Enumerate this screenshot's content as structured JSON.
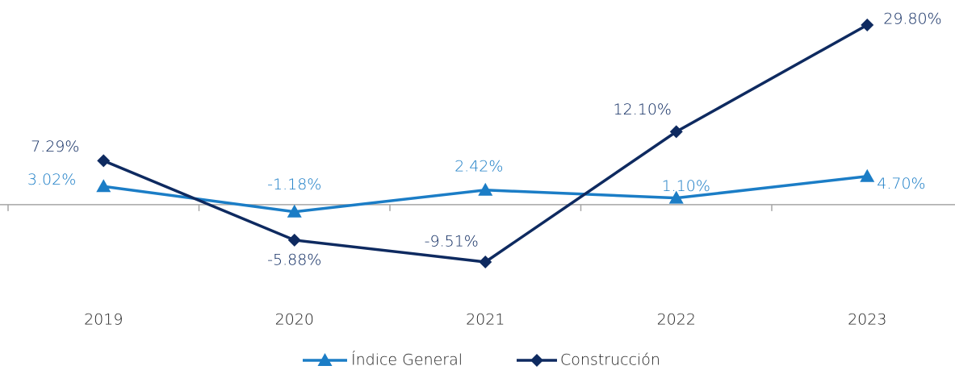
{
  "chart_data": {
    "type": "line",
    "categories": [
      "2019",
      "2020",
      "2021",
      "2022",
      "2023"
    ],
    "series": [
      {
        "name": "Índice General",
        "color": "#1b7dc6",
        "marker": "triangle",
        "values": [
          3.02,
          -1.18,
          2.42,
          1.1,
          4.7
        ],
        "value_labels": [
          "3.02%",
          "-1.18%",
          "2.42%",
          "1.10%",
          "4.70%"
        ]
      },
      {
        "name": "Construcción",
        "color": "#0e2a60",
        "marker": "diamond",
        "values": [
          7.29,
          -5.88,
          -9.51,
          12.1,
          29.8
        ],
        "value_labels": [
          "7.29%",
          "-5.88%",
          "-9.51%",
          "12.10%",
          "29.80%"
        ]
      }
    ],
    "legend": "bottom"
  }
}
